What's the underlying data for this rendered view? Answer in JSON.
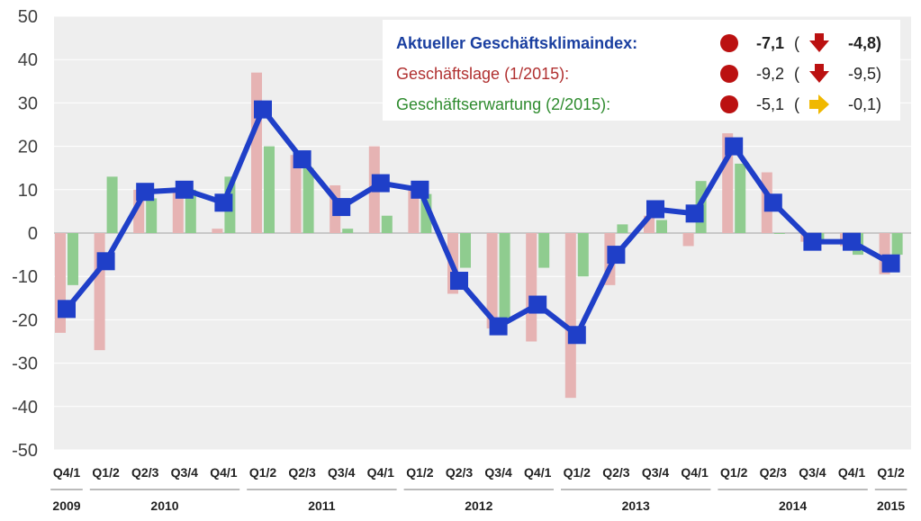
{
  "chart_data": {
    "type": "bar",
    "y_range": [
      -50,
      50
    ],
    "y_ticks": [
      50,
      40,
      30,
      20,
      10,
      0,
      -10,
      -20,
      -30,
      -40,
      -50
    ],
    "grid": true,
    "categories": [
      "Q4/1",
      "Q1/2",
      "Q2/3",
      "Q3/4",
      "Q4/1",
      "Q1/2",
      "Q2/3",
      "Q3/4",
      "Q4/1",
      "Q1/2",
      "Q2/3",
      "Q3/4",
      "Q4/1",
      "Q1/2",
      "Q2/3",
      "Q3/4",
      "Q4/1",
      "Q1/2",
      "Q2/3",
      "Q3/4",
      "Q4/1",
      "Q1/2"
    ],
    "years": [
      {
        "label": "2009",
        "start": 0,
        "end": 0
      },
      {
        "label": "2010",
        "start": 1,
        "end": 4
      },
      {
        "label": "2011",
        "start": 5,
        "end": 8
      },
      {
        "label": "2012",
        "start": 9,
        "end": 12
      },
      {
        "label": "2013",
        "start": 13,
        "end": 16
      },
      {
        "label": "2014",
        "start": 17,
        "end": 20
      },
      {
        "label": "2015",
        "start": 21,
        "end": 21
      }
    ],
    "series": [
      {
        "name": "Geschäftslage",
        "kind": "bar",
        "color": "#e6b3b3",
        "values": [
          -23,
          -27,
          10,
          10,
          1,
          37,
          18,
          11,
          20,
          10,
          -14,
          -22,
          -25,
          -38,
          -12,
          4,
          -3,
          23,
          14,
          -2,
          -3,
          -9.5
        ]
      },
      {
        "name": "Geschäftserwartung",
        "kind": "bar",
        "color": "#8fcc8f",
        "values": [
          -12,
          13,
          8,
          10,
          13,
          20,
          15,
          1,
          4,
          9,
          -8,
          -20,
          -8,
          -10,
          2,
          3,
          12,
          16,
          0,
          -2,
          -5,
          -5
        ]
      },
      {
        "name": "Geschäftsklimaindex",
        "kind": "line",
        "color": "#1f3fc8",
        "values": [
          -17.5,
          -6.5,
          9.5,
          10,
          7,
          28.5,
          17,
          6,
          11.5,
          10,
          -11,
          -21.5,
          -16.5,
          -23.5,
          -5,
          5.5,
          4.5,
          20,
          7,
          -2,
          -2,
          -7
        ]
      }
    ],
    "legend": {
      "position": "top-right",
      "rows": [
        {
          "label": "Aktueller Geschäftsklimaindex:",
          "color": "#1a3fa0",
          "bold": true,
          "value": "-7,1",
          "open": "(",
          "trend": "down",
          "prev": "-4,8)"
        },
        {
          "label": "Geschäftslage (1/2015):",
          "color": "#b03030",
          "bold": false,
          "value": "-9,2",
          "open": "(",
          "trend": "down",
          "prev": "-9,5)"
        },
        {
          "label": "Geschäftserwartung (2/2015):",
          "color": "#2e8b2e",
          "bold": false,
          "value": "-5,1",
          "open": "(",
          "trend": "right",
          "prev": "-0,1)"
        }
      ]
    }
  },
  "colors": {
    "plot_bg": "#eeeeee",
    "grid": "#ffffff",
    "zero_line": "#bbbbbb",
    "dot": "#bb1111",
    "arrow_down": "#bb1111",
    "arrow_right": "#f0b800",
    "year_line": "#bbbbbb"
  }
}
